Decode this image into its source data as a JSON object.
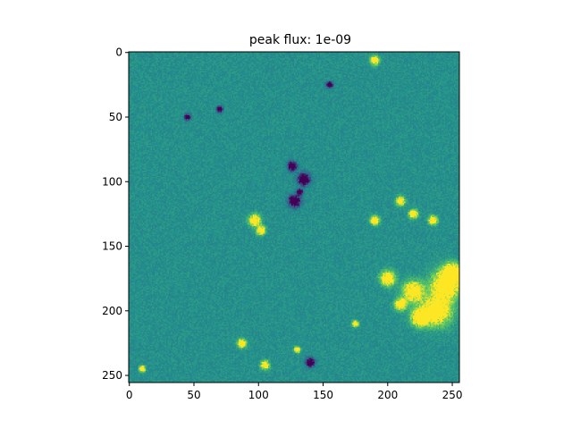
{
  "chart_data": {
    "type": "heatmap",
    "title": "peak flux: 1e-09",
    "xlabel": "",
    "ylabel": "",
    "image_shape": [
      256,
      256
    ],
    "xlim": [
      -0.5,
      255.5
    ],
    "ylim": [
      255.5,
      -0.5
    ],
    "x_ticks": [
      0,
      50,
      100,
      150,
      200,
      250
    ],
    "y_ticks": [
      0,
      50,
      100,
      150,
      200,
      250
    ],
    "colormap": "viridis",
    "colors": {
      "background": "#21908d",
      "positive": "#fde725",
      "negative": "#440154",
      "mid_low": "#3b528b",
      "mid_high": "#5ec962"
    },
    "features": [
      {
        "x": 220,
        "y": 185,
        "r": 7,
        "sign": 1
      },
      {
        "x": 245,
        "y": 180,
        "r": 10,
        "sign": 1
      },
      {
        "x": 238,
        "y": 200,
        "r": 10,
        "sign": 1
      },
      {
        "x": 225,
        "y": 205,
        "r": 6,
        "sign": 1
      },
      {
        "x": 250,
        "y": 170,
        "r": 6,
        "sign": 1
      },
      {
        "x": 200,
        "y": 175,
        "r": 5,
        "sign": 1
      },
      {
        "x": 210,
        "y": 195,
        "r": 4,
        "sign": 1
      },
      {
        "x": 97,
        "y": 130,
        "r": 4,
        "sign": 1
      },
      {
        "x": 102,
        "y": 138,
        "r": 3,
        "sign": 1
      },
      {
        "x": 190,
        "y": 130,
        "r": 3,
        "sign": 1
      },
      {
        "x": 210,
        "y": 115,
        "r": 3,
        "sign": 1
      },
      {
        "x": 220,
        "y": 125,
        "r": 3,
        "sign": 1
      },
      {
        "x": 235,
        "y": 130,
        "r": 3,
        "sign": 1
      },
      {
        "x": 105,
        "y": 242,
        "r": 3,
        "sign": 1
      },
      {
        "x": 190,
        "y": 6,
        "r": 3,
        "sign": 1
      },
      {
        "x": 87,
        "y": 225,
        "r": 3,
        "sign": 1
      },
      {
        "x": 130,
        "y": 230,
        "r": 2,
        "sign": 1
      },
      {
        "x": 10,
        "y": 245,
        "r": 2,
        "sign": 1
      },
      {
        "x": 175,
        "y": 210,
        "r": 2,
        "sign": 1
      },
      {
        "x": 135,
        "y": 98,
        "r": 4,
        "sign": -1
      },
      {
        "x": 126,
        "y": 88,
        "r": 3,
        "sign": -1
      },
      {
        "x": 128,
        "y": 115,
        "r": 4,
        "sign": -1
      },
      {
        "x": 132,
        "y": 108,
        "r": 2,
        "sign": -1
      },
      {
        "x": 140,
        "y": 240,
        "r": 3,
        "sign": -1
      },
      {
        "x": 70,
        "y": 44,
        "r": 2,
        "sign": -1
      },
      {
        "x": 45,
        "y": 50,
        "r": 2,
        "sign": -1
      },
      {
        "x": 155,
        "y": 25,
        "r": 2,
        "sign": -1
      }
    ]
  }
}
